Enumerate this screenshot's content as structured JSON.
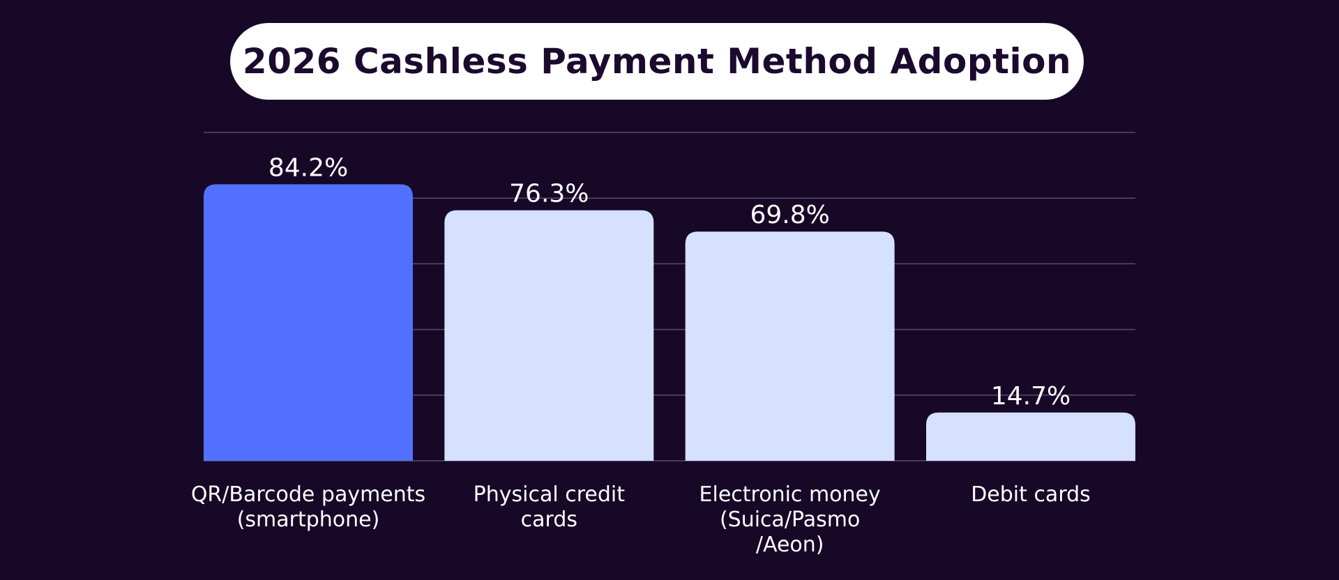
{
  "chart_data": {
    "type": "bar",
    "title": "2026 Cashless Payment Method Adoption",
    "categories": [
      [
        "QR/Barcode payments",
        "(smartphone)"
      ],
      [
        "Physical credit",
        "cards"
      ],
      [
        "Electronic money",
        "(Suica/Pasmo",
        "/Aeon)"
      ],
      [
        "Debit cards"
      ]
    ],
    "values": [
      84.2,
      76.3,
      69.8,
      14.7
    ],
    "value_labels": [
      "84.2%",
      "76.3%",
      "69.8%",
      "14.7%"
    ],
    "ylim": [
      0,
      100
    ],
    "grid": true,
    "xlabel": "",
    "ylabel": ""
  },
  "colors": {
    "background": "#170828",
    "highlight_bar": "#5271ff",
    "bar": "#d6e0ff",
    "grid": "#5a4a6e",
    "text": "#ffffff",
    "title_box": "#ffffff",
    "title_text": "#1b0a2e"
  }
}
